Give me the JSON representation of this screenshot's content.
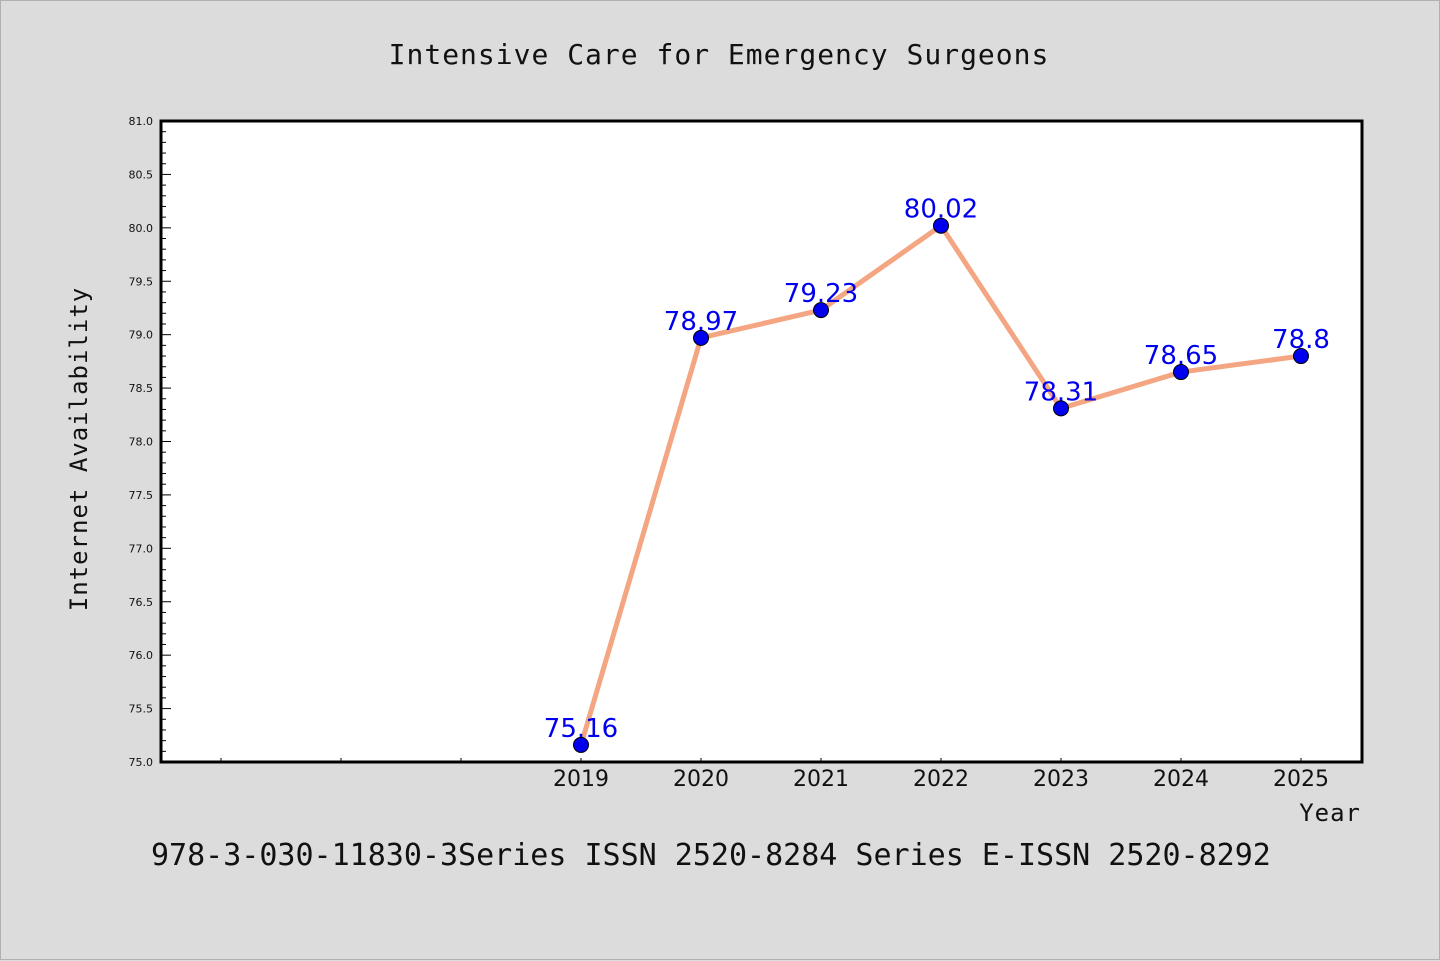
{
  "chart_data": {
    "type": "line",
    "title": "Intensive Care for Emergency Surgeons",
    "xlabel": "Year",
    "ylabel": "Internet Availability",
    "x": [
      "2019",
      "2020",
      "2021",
      "2022",
      "2023",
      "2024",
      "2025"
    ],
    "series": [
      {
        "values": [
          75.16,
          78.97,
          79.23,
          80.02,
          78.31,
          78.65,
          78.8
        ]
      }
    ],
    "data_labels": [
      "75.16",
      "78.97",
      "79.23",
      "80.02",
      "78.31",
      "78.65",
      "78.8"
    ],
    "ylim": [
      75.0,
      81.0
    ],
    "yticks": [
      "75.0",
      "75.5",
      "76.0",
      "76.5",
      "77.0",
      "77.5",
      "78.0",
      "78.5",
      "79.0",
      "79.5",
      "80.0",
      "80.5",
      "81.0"
    ],
    "grid": false,
    "legend": "none",
    "colors": {
      "line": "#f4a582",
      "marker": "#0000ee",
      "label": "#0000ee",
      "background": "#dcdcdc",
      "plot_area": "#ffffff"
    }
  },
  "footer": "978-3-030-11830-3Series ISSN 2520-8284 Series E-ISSN 2520-8292"
}
